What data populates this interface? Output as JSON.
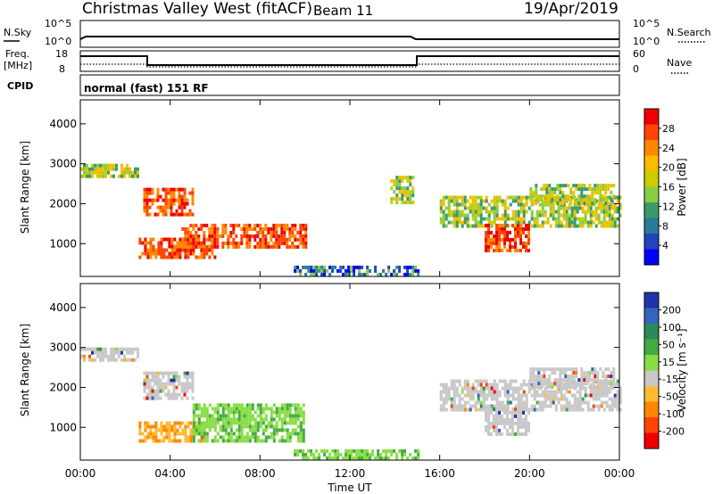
{
  "header": {
    "station": "Christmas Valley West (fitACF)",
    "beam": "Beam 11",
    "date": "19/Apr/2019"
  },
  "noise_panel": {
    "left_label": "N.Sky",
    "right_label": "N.Search",
    "left_ticks": [
      "10^5",
      "10^0"
    ],
    "right_ticks": [
      "10^5",
      "10^0"
    ]
  },
  "freq_panel": {
    "left_label_1": "Freq.",
    "left_label_2": "[MHz]",
    "right_label": "Nave",
    "left_ticks": [
      "18",
      "8"
    ],
    "right_ticks": [
      "60",
      "0"
    ]
  },
  "cpid": {
    "label": "CPID",
    "program": "normal (fast) 151 RF"
  },
  "chart_data": [
    {
      "type": "heatmap",
      "name": "power",
      "ylabel": "Slant Range [km]",
      "x_ticks": [
        "00:00",
        "04:00",
        "08:00",
        "12:00",
        "16:00",
        "20:00",
        "00:00"
      ],
      "y_ticks": [
        "1000",
        "2000",
        "3000",
        "4000"
      ],
      "ylim": [
        180,
        4600
      ],
      "colorbar": {
        "label": "Power [dB]",
        "ticks": [
          "28",
          "24",
          "20",
          "16",
          "12",
          "8",
          "4"
        ],
        "colors": [
          "#ee0000",
          "#ff4400",
          "#ff8800",
          "#ffbb00",
          "#cccc00",
          "#88cc44",
          "#3a9a6a",
          "#2a7a9a",
          "#2244bb",
          "#0000ff"
        ]
      },
      "regions": [
        {
          "t0": 0.0,
          "t1": 2.6,
          "r0": 2700,
          "r1": 3000,
          "v": "mid"
        },
        {
          "t0": 2.8,
          "t1": 5.0,
          "r0": 1700,
          "r1": 2400,
          "v": "high"
        },
        {
          "t0": 2.6,
          "t1": 6.0,
          "r0": 650,
          "r1": 1150,
          "v": "high"
        },
        {
          "t0": 4.5,
          "t1": 10.0,
          "r0": 900,
          "r1": 1500,
          "v": "high"
        },
        {
          "t0": 9.5,
          "t1": 15.0,
          "r0": 250,
          "r1": 450,
          "v": "low"
        },
        {
          "t0": 13.8,
          "t1": 14.8,
          "r0": 2000,
          "r1": 2700,
          "v": "mid"
        },
        {
          "t0": 16.0,
          "t1": 24.0,
          "r0": 1400,
          "r1": 2200,
          "v": "mid"
        },
        {
          "t0": 18.0,
          "t1": 20.0,
          "r0": 800,
          "r1": 1500,
          "v": "high"
        },
        {
          "t0": 20.0,
          "t1": 23.8,
          "r0": 2000,
          "r1": 2500,
          "v": "mid"
        }
      ],
      "dates": "19/Apr/2019"
    },
    {
      "type": "heatmap",
      "name": "velocity",
      "ylabel": "Slant Range [km]",
      "xlabel": "Time UT",
      "x_ticks": [
        "00:00",
        "04:00",
        "08:00",
        "12:00",
        "16:00",
        "20:00",
        "00:00"
      ],
      "y_ticks": [
        "1000",
        "2000",
        "3000",
        "4000"
      ],
      "ylim": [
        180,
        4600
      ],
      "colorbar": {
        "label": "Velocity [m s⁻¹]",
        "ticks": [
          "200",
          "100",
          "50",
          "15",
          "-15",
          "-50",
          "-100",
          "-200"
        ],
        "colors": [
          "#2233aa",
          "#3366bb",
          "#2a8a5a",
          "#44aa44",
          "#88dd44",
          "#c8c8c8",
          "#ffbb33",
          "#ff8800",
          "#ff4400",
          "#ee0000"
        ]
      },
      "regions": [
        {
          "t0": 0.0,
          "t1": 2.6,
          "r0": 2700,
          "r1": 3000,
          "v": "grey"
        },
        {
          "t0": 2.8,
          "t1": 5.0,
          "r0": 1700,
          "r1": 2400,
          "v": "grey"
        },
        {
          "t0": 2.6,
          "t1": 5.5,
          "r0": 650,
          "r1": 1150,
          "v": "orange"
        },
        {
          "t0": 5.0,
          "t1": 10.0,
          "r0": 700,
          "r1": 1600,
          "v": "green"
        },
        {
          "t0": 9.5,
          "t1": 15.0,
          "r0": 250,
          "r1": 450,
          "v": "green"
        },
        {
          "t0": 16.0,
          "t1": 24.0,
          "r0": 1400,
          "r1": 2200,
          "v": "grey"
        },
        {
          "t0": 18.0,
          "t1": 20.0,
          "r0": 800,
          "r1": 1500,
          "v": "grey"
        },
        {
          "t0": 20.0,
          "t1": 23.8,
          "r0": 2000,
          "r1": 2500,
          "v": "grey"
        }
      ],
      "dates": "19/Apr/2019"
    }
  ]
}
